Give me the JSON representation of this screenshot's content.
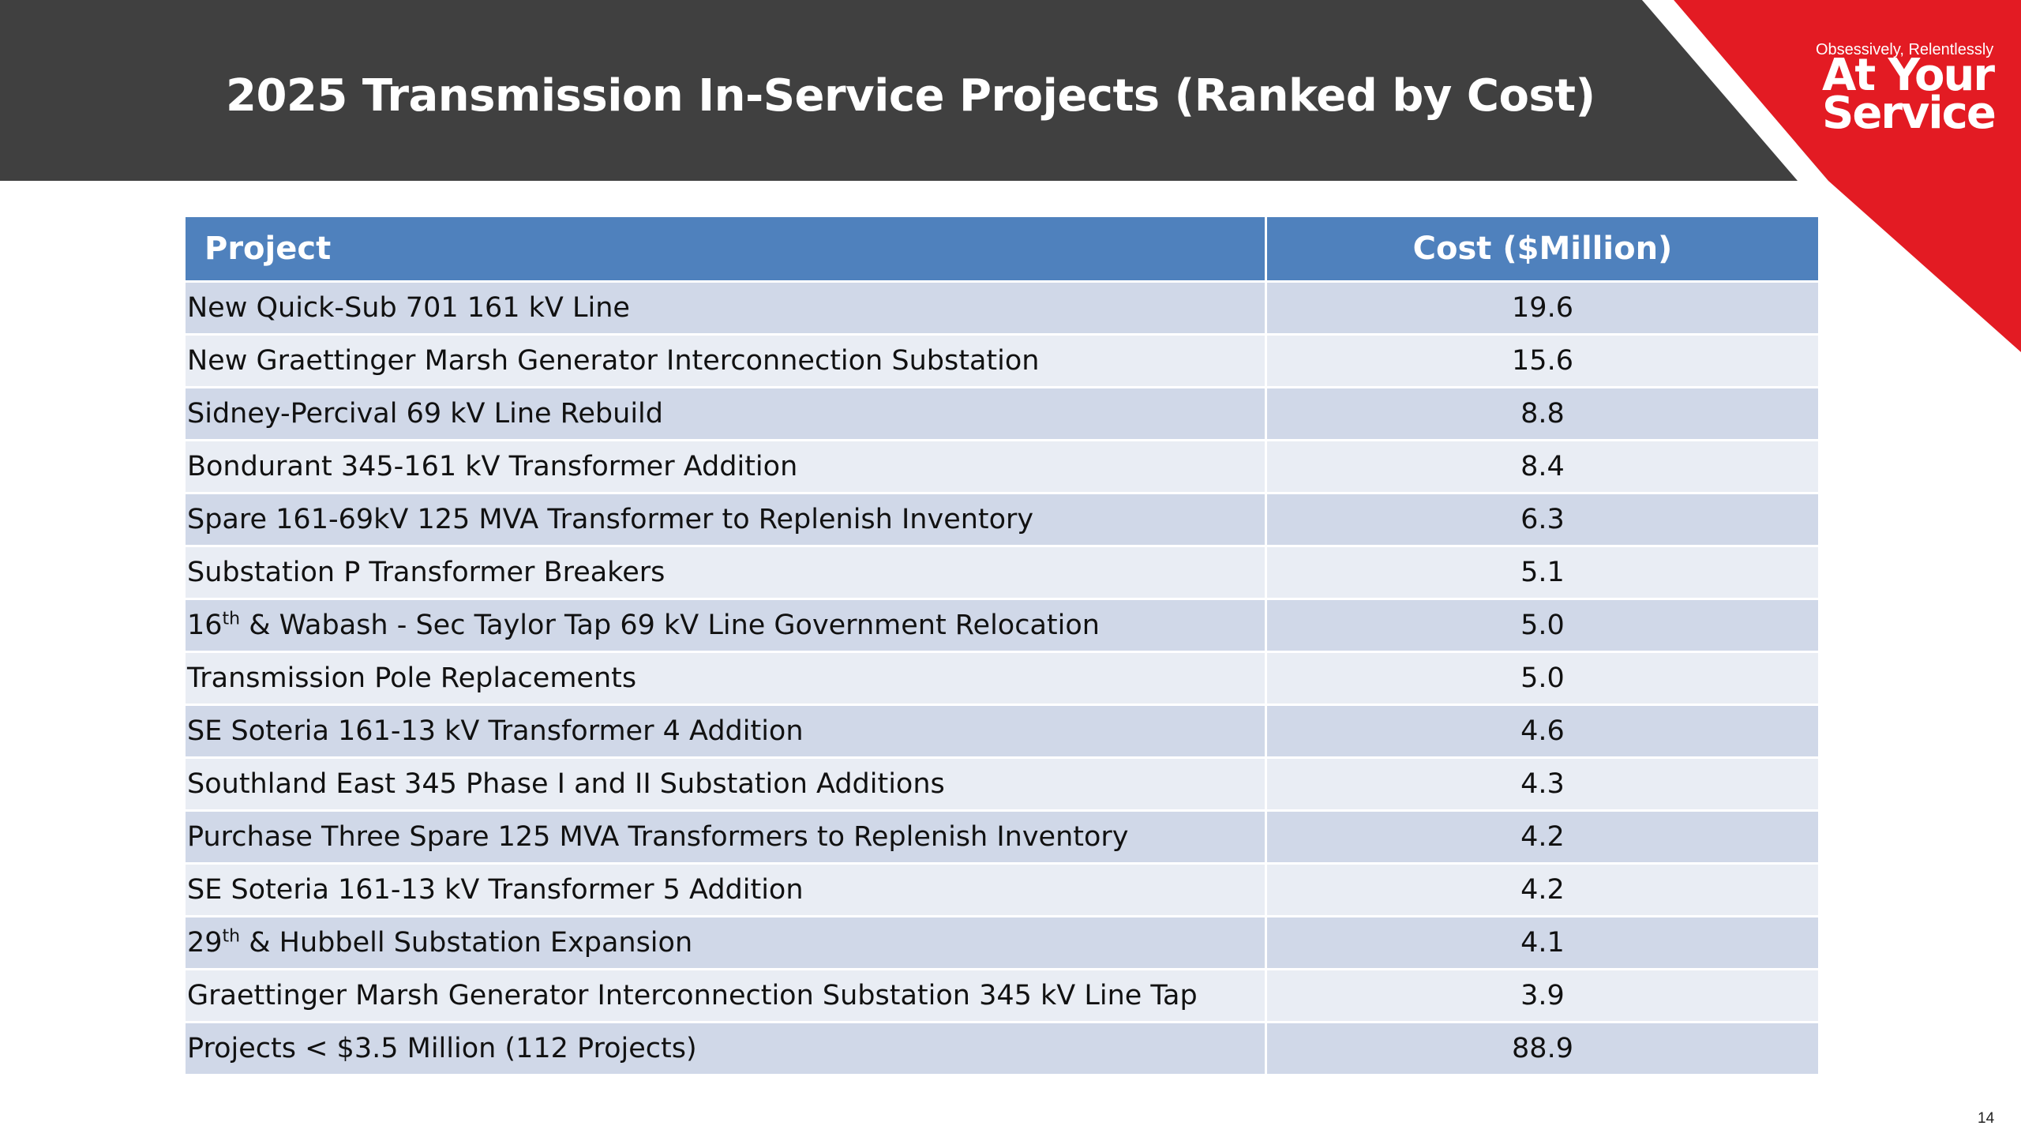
{
  "slide": {
    "title": "2025 Transmission In-Service Projects (Ranked by Cost)",
    "page_number": "14"
  },
  "brand": {
    "tagline": "Obsessively, Relentlessly",
    "name_line1": "At Your",
    "name_line2": "Service",
    "accent_color": "#e31b23"
  },
  "table": {
    "headers": {
      "project": "Project",
      "cost": "Cost ($Million)"
    },
    "rows": [
      {
        "project": "New Quick-Sub 701 161 kV Line",
        "cost": "19.6"
      },
      {
        "project": "New Graettinger Marsh Generator Interconnection Substation",
        "cost": "15.6"
      },
      {
        "project": "Sidney-Percival 69 kV Line Rebuild",
        "cost": "8.8"
      },
      {
        "project": "Bondurant 345-161 kV Transformer Addition",
        "cost": "8.4"
      },
      {
        "project": "Spare 161-69kV 125 MVA Transformer to Replenish Inventory",
        "cost": "6.3"
      },
      {
        "project": "Substation P Transformer Breakers",
        "cost": "5.1"
      },
      {
        "project_pre": "16",
        "project_sup": "th",
        "project": " & Wabash - Sec Taylor Tap 69 kV Line Government Relocation",
        "cost": "5.0"
      },
      {
        "project": "Transmission Pole Replacements",
        "cost": "5.0"
      },
      {
        "project": "SE Soteria 161-13 kV Transformer 4 Addition",
        "cost": "4.6"
      },
      {
        "project": "Southland East 345 Phase I and II Substation Additions",
        "cost": "4.3"
      },
      {
        "project": "Purchase Three Spare 125 MVA Transformers to Replenish Inventory",
        "cost": "4.2"
      },
      {
        "project": "SE Soteria 161-13 kV Transformer 5 Addition",
        "cost": "4.2"
      },
      {
        "project_pre": "29",
        "project_sup": "th",
        "project": " & Hubbell Substation Expansion",
        "cost": "4.1"
      },
      {
        "project": "Graettinger Marsh Generator Interconnection Substation 345 kV Line Tap",
        "cost": "3.9"
      },
      {
        "project": "Projects < $3.5 Million (112 Projects)",
        "cost": "88.9"
      }
    ]
  }
}
